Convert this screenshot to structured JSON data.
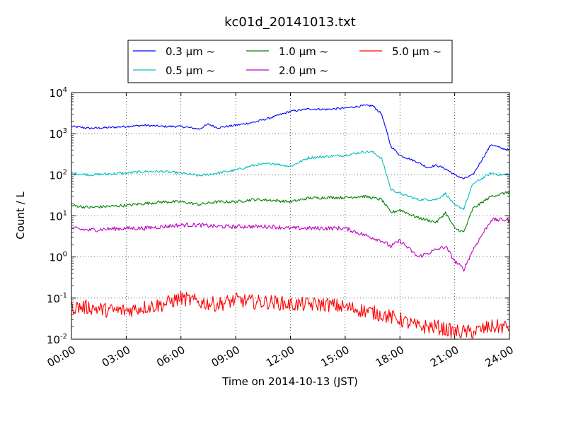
{
  "chart_data": {
    "type": "line",
    "title": "kc01d_20141013.txt",
    "xlabel": "Time on 2014-10-13 (JST)",
    "ylabel": "Count / L",
    "y_scale": "log",
    "ylim": [
      0.01,
      10000
    ],
    "xlim": [
      "2014-10-13 00:00",
      "2014-10-14 00:00"
    ],
    "x_tick_labels": [
      "00:00",
      "03:00",
      "06:00",
      "09:00",
      "12:00",
      "15:00",
      "18:00",
      "21:00",
      "24:00"
    ],
    "y_tick_labels": [
      {
        "base": "10",
        "exp": "-2"
      },
      {
        "base": "10",
        "exp": "-1"
      },
      {
        "base": "10",
        "exp": "0"
      },
      {
        "base": "10",
        "exp": "1"
      },
      {
        "base": "10",
        "exp": "2"
      },
      {
        "base": "10",
        "exp": "3"
      },
      {
        "base": "10",
        "exp": "4"
      }
    ],
    "grid": true,
    "legend_placement": "top-center, above plot",
    "series": [
      {
        "name": "0.3 μm ~",
        "color": "#0000ff",
        "x": [
          "00:00",
          "01:00",
          "02:00",
          "03:00",
          "04:00",
          "05:00",
          "06:00",
          "07:00",
          "07:30",
          "08:00",
          "09:00",
          "10:00",
          "11:00",
          "12:00",
          "13:00",
          "14:00",
          "15:00",
          "16:00",
          "16:30",
          "17:00",
          "17:30",
          "18:00",
          "19:00",
          "19:30",
          "20:00",
          "20:30",
          "21:00",
          "21:30",
          "22:00",
          "23:00",
          "23:30",
          "24:00"
        ],
        "values": [
          1500,
          1350,
          1400,
          1500,
          1600,
          1500,
          1500,
          1300,
          1700,
          1400,
          1600,
          1900,
          2500,
          3500,
          4000,
          3900,
          4200,
          4800,
          4800,
          3000,
          500,
          300,
          200,
          150,
          170,
          140,
          100,
          80,
          100,
          550,
          450,
          400
        ]
      },
      {
        "name": "0.5 μm ~",
        "color": "#00bfbf",
        "x": [
          "00:00",
          "01:00",
          "02:00",
          "03:00",
          "04:00",
          "05:00",
          "06:00",
          "07:00",
          "08:00",
          "09:00",
          "10:00",
          "11:00",
          "12:00",
          "13:00",
          "14:00",
          "15:00",
          "16:00",
          "16:30",
          "17:00",
          "17:30",
          "18:00",
          "19:00",
          "20:00",
          "20:30",
          "21:00",
          "21:30",
          "22:00",
          "23:00",
          "23:30",
          "24:00"
        ],
        "values": [
          110,
          100,
          105,
          110,
          120,
          120,
          110,
          95,
          110,
          130,
          170,
          190,
          160,
          260,
          280,
          300,
          360,
          360,
          250,
          45,
          35,
          25,
          25,
          35,
          18,
          15,
          60,
          110,
          100,
          105
        ]
      },
      {
        "name": "1.0 μm ~",
        "color": "#008000",
        "x": [
          "00:00",
          "01:00",
          "02:00",
          "03:00",
          "04:00",
          "05:00",
          "06:00",
          "07:00",
          "08:00",
          "09:00",
          "10:00",
          "11:00",
          "12:00",
          "13:00",
          "14:00",
          "15:00",
          "16:00",
          "17:00",
          "17:30",
          "18:00",
          "19:00",
          "20:00",
          "20:30",
          "21:00",
          "21:30",
          "22:00",
          "23:00",
          "24:00"
        ],
        "values": [
          18,
          16,
          17,
          18,
          20,
          22,
          22,
          19,
          22,
          22,
          25,
          24,
          22,
          27,
          28,
          28,
          30,
          25,
          12,
          14,
          9,
          7,
          12,
          5,
          4,
          15,
          30,
          38
        ]
      },
      {
        "name": "2.0 μm ~",
        "color": "#bf00bf",
        "x": [
          "00:00",
          "01:00",
          "02:00",
          "03:00",
          "04:00",
          "05:00",
          "06:00",
          "07:00",
          "08:00",
          "09:00",
          "10:00",
          "11:00",
          "12:00",
          "13:00",
          "14:00",
          "15:00",
          "16:00",
          "17:00",
          "17:30",
          "18:00",
          "19:00",
          "20:00",
          "20:30",
          "21:00",
          "21:30",
          "22:00",
          "23:00",
          "24:00"
        ],
        "values": [
          5,
          4.5,
          4.8,
          5,
          5,
          5.5,
          6,
          6,
          5.5,
          5.5,
          5.5,
          5.5,
          5,
          5,
          5,
          5,
          3.5,
          2.5,
          1.8,
          2.5,
          1,
          1.5,
          1.8,
          0.8,
          0.5,
          1.5,
          8,
          8
        ]
      },
      {
        "name": "5.0 μm ~",
        "color": "#ff0000",
        "x": [
          "00:00",
          "01:00",
          "02:00",
          "03:00",
          "04:00",
          "05:00",
          "06:00",
          "07:00",
          "08:00",
          "09:00",
          "10:00",
          "11:00",
          "12:00",
          "13:00",
          "14:00",
          "15:00",
          "16:00",
          "17:00",
          "18:00",
          "19:00",
          "20:00",
          "21:00",
          "22:00",
          "23:00",
          "24:00"
        ],
        "values": [
          0.06,
          0.06,
          0.05,
          0.05,
          0.06,
          0.07,
          0.1,
          0.08,
          0.07,
          0.09,
          0.08,
          0.08,
          0.07,
          0.07,
          0.07,
          0.06,
          0.05,
          0.04,
          0.03,
          0.02,
          0.02,
          0.015,
          0.015,
          0.02,
          0.02
        ]
      }
    ]
  }
}
